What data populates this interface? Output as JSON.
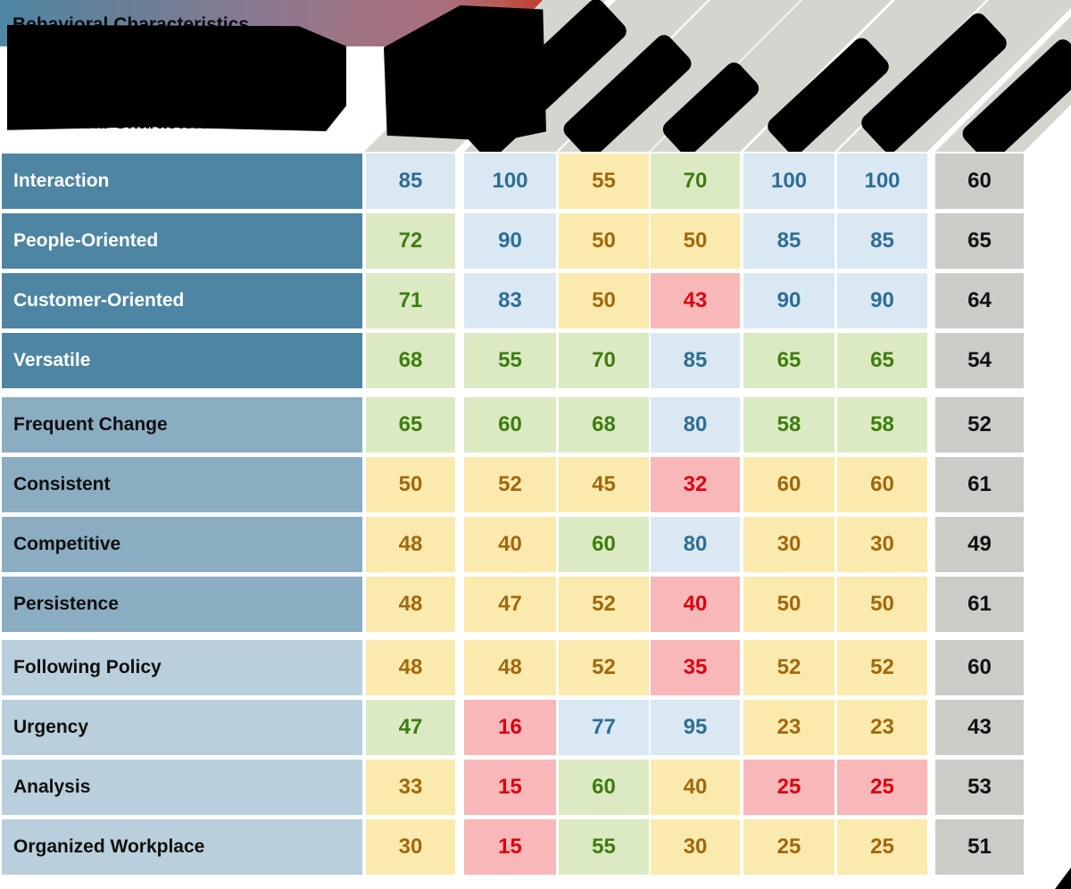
{
  "title": "Behavioral Characteristics",
  "palette": {
    "label_group_dark": "#4d85a2",
    "label_group_medium": "#8badc2",
    "label_group_light": "#b9cfdb",
    "cell_blue_bg": "#d9e8f3",
    "cell_blue_text": "#2f6e92",
    "cell_green_bg": "#dbeac3",
    "cell_green_text": "#3e7d10",
    "cell_yellow_bg": "#fbeaae",
    "cell_yellow_text": "#a1680e",
    "cell_red_bg": "#f8b7b9",
    "cell_red_text": "#d90210",
    "cell_gray_bg": "#cbcbc7",
    "cell_gray_text": "#111111",
    "header_cell_bg": "#d5d5d0",
    "ribbon_gradient_start": "#4e86a4",
    "ribbon_gradient_end": "#c5392f",
    "redaction": "#000000"
  },
  "chart_data": {
    "type": "heatmap",
    "title": "Behavioral Characteristics",
    "columns": [
      "",
      "",
      "",
      "",
      "",
      "",
      ""
    ],
    "columns_note_labels_redacted": true,
    "rows": [
      "Interaction",
      "People-Oriented",
      "Customer-Oriented",
      "Versatile",
      "Frequent Change",
      "Consistent",
      "Competitive",
      "Persistence",
      "Following Policy",
      "Urgency",
      "Analysis",
      "Organized Workplace"
    ],
    "row_groups": [
      {
        "rows": [
          0,
          3
        ],
        "shade": "dark"
      },
      {
        "rows": [
          4,
          7
        ],
        "shade": "medium"
      },
      {
        "rows": [
          8,
          11
        ],
        "shade": "light"
      }
    ],
    "values": [
      [
        85,
        100,
        55,
        70,
        100,
        100,
        60
      ],
      [
        72,
        90,
        50,
        50,
        85,
        85,
        65
      ],
      [
        71,
        83,
        50,
        43,
        90,
        90,
        64
      ],
      [
        68,
        55,
        70,
        85,
        65,
        65,
        54
      ],
      [
        65,
        60,
        68,
        80,
        58,
        58,
        52
      ],
      [
        50,
        52,
        45,
        32,
        60,
        60,
        61
      ],
      [
        48,
        40,
        60,
        80,
        30,
        30,
        49
      ],
      [
        48,
        47,
        52,
        40,
        50,
        50,
        61
      ],
      [
        48,
        48,
        52,
        35,
        52,
        52,
        60
      ],
      [
        47,
        16,
        77,
        95,
        23,
        23,
        43
      ],
      [
        33,
        15,
        60,
        40,
        25,
        25,
        53
      ],
      [
        30,
        15,
        55,
        30,
        25,
        25,
        51
      ]
    ],
    "cell_colors": [
      [
        "blue",
        "blue",
        "yellow",
        "green",
        "blue",
        "blue",
        "gray"
      ],
      [
        "green",
        "blue",
        "yellow",
        "yellow",
        "blue",
        "blue",
        "gray"
      ],
      [
        "green",
        "blue",
        "yellow",
        "red",
        "blue",
        "blue",
        "gray"
      ],
      [
        "green",
        "green",
        "green",
        "blue",
        "green",
        "green",
        "gray"
      ],
      [
        "green",
        "green",
        "green",
        "blue",
        "green",
        "green",
        "gray"
      ],
      [
        "yellow",
        "yellow",
        "yellow",
        "red",
        "yellow",
        "yellow",
        "gray"
      ],
      [
        "yellow",
        "yellow",
        "green",
        "blue",
        "yellow",
        "yellow",
        "gray"
      ],
      [
        "yellow",
        "yellow",
        "yellow",
        "red",
        "yellow",
        "yellow",
        "gray"
      ],
      [
        "yellow",
        "yellow",
        "yellow",
        "red",
        "yellow",
        "yellow",
        "gray"
      ],
      [
        "green",
        "red",
        "blue",
        "blue",
        "yellow",
        "yellow",
        "gray"
      ],
      [
        "yellow",
        "red",
        "green",
        "yellow",
        "red",
        "red",
        "gray"
      ],
      [
        "yellow",
        "red",
        "green",
        "yellow",
        "yellow",
        "yellow",
        "gray"
      ]
    ],
    "legend_position": "none",
    "grid": "white-gaps-between-cells"
  }
}
